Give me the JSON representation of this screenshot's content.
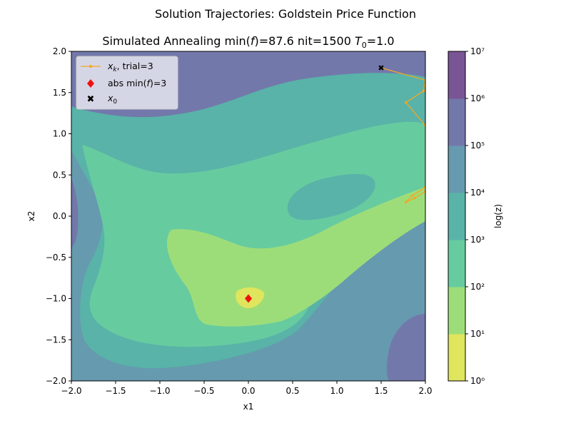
{
  "suptitle": "Solution Trajectories: Goldstein Price Function",
  "chart_data": {
    "type": "contour",
    "title": "Simulated Annealing min(f)=87.6 nit=1500 T₀=1.0",
    "xlabel": "x1",
    "ylabel": "x2",
    "xlim": [
      -2.0,
      2.0
    ],
    "ylim": [
      -2.0,
      2.0
    ],
    "xticks": [
      "−2.0",
      "−1.5",
      "−1.0",
      "−0.5",
      "0.0",
      "0.5",
      "1.0",
      "1.5",
      "2.0"
    ],
    "yticks": [
      "−2.0",
      "−1.5",
      "−1.0",
      "−0.5",
      "0.0",
      "0.5",
      "1.0",
      "1.5",
      "2.0"
    ],
    "colorbar": {
      "label": "log(z)",
      "scale": "log",
      "ticks": [
        "10⁰",
        "10¹",
        "10²",
        "10³",
        "10⁴",
        "10⁵",
        "10⁶",
        "10⁷"
      ],
      "levels": [
        1,
        10,
        100,
        1000,
        10000,
        100000,
        1000000,
        10000000
      ],
      "colors": [
        "#dfe55c",
        "#9ddd79",
        "#67cba0",
        "#59b3a8",
        "#669aae",
        "#7378ab",
        "#7a5596"
      ]
    },
    "legend": {
      "location": "top-left",
      "entries": [
        {
          "label": "x_k, trial=3",
          "marker": "line-dot",
          "color": "#f5a623"
        },
        {
          "label": "abs min(f)=3",
          "marker": "diamond",
          "color": "#ee1111"
        },
        {
          "label": "x_0",
          "marker": "x",
          "color": "#3388ee"
        }
      ]
    },
    "trajectory": {
      "name": "x_k, trial=3",
      "points": [
        [
          1.5,
          1.8
        ],
        [
          2.0,
          1.65
        ],
        [
          1.98,
          1.52
        ],
        [
          1.78,
          1.38
        ],
        [
          2.0,
          1.1
        ],
        [
          2.0,
          0.35
        ],
        [
          1.85,
          0.25
        ],
        [
          1.78,
          0.17
        ],
        [
          1.88,
          0.22
        ],
        [
          2.0,
          0.3
        ]
      ]
    },
    "abs_min": {
      "x": 0.0,
      "y": -1.0,
      "value": 3
    },
    "x0": {
      "x": 1.5,
      "y": 1.8
    }
  }
}
